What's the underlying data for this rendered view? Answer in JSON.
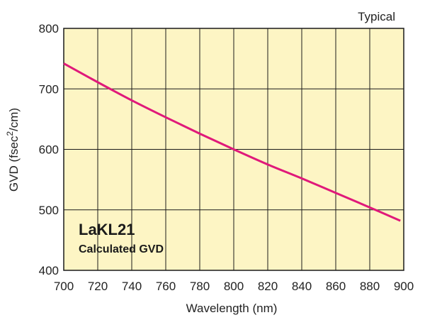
{
  "chart_data": {
    "type": "line",
    "title": "",
    "xlabel": "Wavelength (nm)",
    "ylabel_prefix": "GVD (fsec",
    "ylabel_sup": "2",
    "ylabel_suffix": "/cm)",
    "corner_note": "Typical",
    "annotation_title": "LaKL21",
    "annotation_subtitle": "Calculated GVD",
    "xlim": [
      700,
      900
    ],
    "ylim": [
      400,
      800
    ],
    "x_ticks": [
      700,
      720,
      740,
      760,
      780,
      800,
      820,
      840,
      860,
      880,
      900
    ],
    "y_ticks": [
      400,
      500,
      600,
      700,
      800
    ],
    "grid": true,
    "plot_background": "#fdf5c4",
    "grid_color": "#1a1a1a",
    "line_color": "#e0197a",
    "series": [
      {
        "x": [
          700,
          720,
          740,
          760,
          780,
          800,
          820,
          840,
          860,
          880,
          898
        ],
        "y": [
          742,
          711,
          681,
          653,
          626,
          600,
          575,
          552,
          528,
          504,
          482
        ]
      }
    ]
  }
}
